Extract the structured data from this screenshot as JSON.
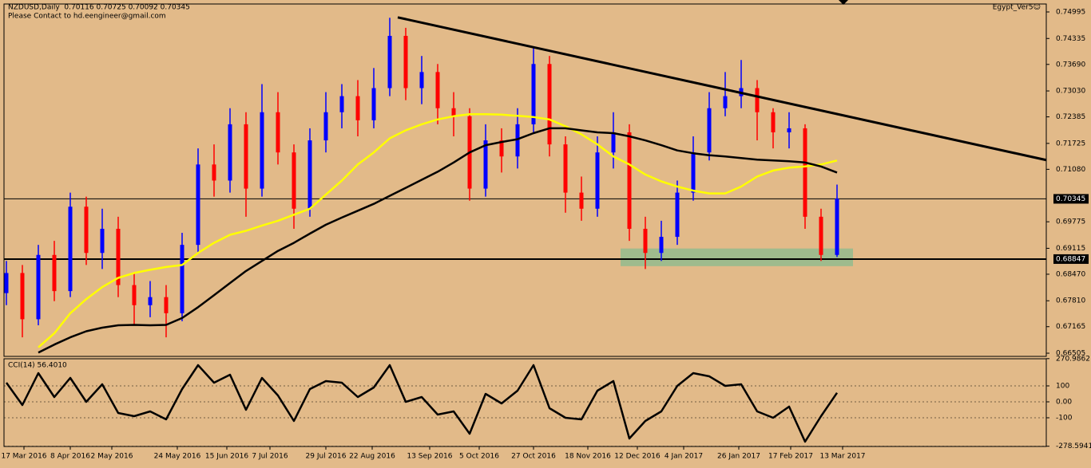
{
  "chart_data": [
    {
      "type": "candlestick",
      "title": "NZDUSD,Daily  0.70116 0.70725 0.70092 0.70345",
      "subtitle": "Please Contact to hd.eengineer@gmail.com",
      "annotation": "Egypt_Ver5☺",
      "up_color": "#0000ff",
      "down_color": "#ff0000",
      "open": [
        0.68,
        0.685,
        0.6735,
        0.6895,
        0.6805,
        0.7015,
        0.69,
        0.696,
        0.682,
        0.677,
        0.679,
        0.675,
        0.692,
        0.712,
        0.708,
        0.722,
        0.706,
        0.725,
        0.715,
        0.701,
        0.718,
        0.725,
        0.729,
        0.723,
        0.731,
        0.744,
        0.731,
        0.735,
        0.726,
        0.724,
        0.706,
        0.718,
        0.714,
        0.722,
        0.737,
        0.717,
        0.705,
        0.701,
        0.715,
        0.72,
        0.696,
        0.69,
        0.694,
        0.705,
        0.715,
        0.726,
        0.729,
        0.731,
        0.725,
        0.72,
        0.721,
        0.699,
        0.6895
      ],
      "high": [
        0.688,
        0.687,
        0.692,
        0.693,
        0.705,
        0.704,
        0.701,
        0.699,
        0.685,
        0.683,
        0.682,
        0.695,
        0.716,
        0.717,
        0.726,
        0.725,
        0.732,
        0.73,
        0.717,
        0.721,
        0.73,
        0.732,
        0.733,
        0.736,
        0.7485,
        0.746,
        0.739,
        0.737,
        0.73,
        0.726,
        0.722,
        0.721,
        0.726,
        0.741,
        0.739,
        0.719,
        0.709,
        0.719,
        0.725,
        0.722,
        0.699,
        0.698,
        0.708,
        0.719,
        0.73,
        0.735,
        0.738,
        0.733,
        0.726,
        0.725,
        0.722,
        0.701,
        0.707
      ],
      "low": [
        0.677,
        0.669,
        0.672,
        0.678,
        0.679,
        0.687,
        0.686,
        0.679,
        0.672,
        0.674,
        0.669,
        0.673,
        0.69,
        0.704,
        0.705,
        0.699,
        0.704,
        0.712,
        0.696,
        0.699,
        0.715,
        0.721,
        0.719,
        0.721,
        0.729,
        0.728,
        0.727,
        0.722,
        0.719,
        0.703,
        0.704,
        0.71,
        0.711,
        0.72,
        0.714,
        0.7,
        0.698,
        0.699,
        0.711,
        0.693,
        0.686,
        0.688,
        0.692,
        0.703,
        0.713,
        0.724,
        0.726,
        0.718,
        0.716,
        0.716,
        0.696,
        0.688,
        0.689
      ],
      "close": [
        0.685,
        0.6735,
        0.6895,
        0.6805,
        0.7015,
        0.69,
        0.696,
        0.682,
        0.677,
        0.679,
        0.675,
        0.692,
        0.712,
        0.708,
        0.722,
        0.706,
        0.725,
        0.715,
        0.701,
        0.718,
        0.725,
        0.729,
        0.723,
        0.731,
        0.744,
        0.731,
        0.735,
        0.726,
        0.724,
        0.706,
        0.718,
        0.714,
        0.722,
        0.737,
        0.717,
        0.705,
        0.701,
        0.715,
        0.72,
        0.696,
        0.69,
        0.694,
        0.705,
        0.715,
        0.726,
        0.729,
        0.731,
        0.725,
        0.72,
        0.721,
        0.699,
        0.6895,
        0.7035
      ],
      "series": [
        {
          "color": "#ffff00",
          "values": [
            null,
            null,
            0.6665,
            0.67,
            0.675,
            0.6785,
            0.6815,
            0.6838,
            0.685,
            0.6858,
            0.6865,
            0.687,
            0.69,
            0.6925,
            0.6945,
            0.6955,
            0.6968,
            0.698,
            0.6995,
            0.701,
            0.7045,
            0.708,
            0.712,
            0.715,
            0.7185,
            0.7205,
            0.722,
            0.7232,
            0.724,
            0.7245,
            0.7245,
            0.7244,
            0.7241,
            0.7238,
            0.7232,
            0.7215,
            0.7195,
            0.717,
            0.714,
            0.712,
            0.7095,
            0.7078,
            0.7065,
            0.7055,
            0.7048,
            0.7048,
            0.7065,
            0.709,
            0.7105,
            0.7112,
            0.7115,
            0.712,
            0.713
          ]
        },
        {
          "color": "#000000",
          "values": [
            null,
            null,
            0.6652,
            0.6672,
            0.669,
            0.6705,
            0.6714,
            0.672,
            0.6721,
            0.672,
            0.6721,
            0.6738,
            0.6765,
            0.6795,
            0.6825,
            0.6855,
            0.688,
            0.6905,
            0.6925,
            0.6948,
            0.697,
            0.6988,
            0.7005,
            0.7022,
            0.7042,
            0.7062,
            0.7082,
            0.7102,
            0.7125,
            0.715,
            0.7168,
            0.7176,
            0.7183,
            0.7198,
            0.721,
            0.721,
            0.7205,
            0.72,
            0.7198,
            0.719,
            0.718,
            0.7168,
            0.7155,
            0.7148,
            0.7143,
            0.714,
            0.7136,
            0.7132,
            0.713,
            0.7128,
            0.7125,
            0.7115,
            0.71
          ]
        }
      ],
      "hlines": [
        0.70345,
        0.68847
      ],
      "trendline": {
        "x": [
          24.5,
          65.1
        ],
        "y": [
          0.7486,
          0.7131
        ]
      },
      "zone": {
        "x": [
          38.45,
          53.0
        ],
        "y": [
          0.6867,
          0.6911
        ],
        "color": "#8fbc8f"
      },
      "xlim": [
        -0.15,
        65.1
      ],
      "ylim": [
        0.66426,
        0.75193
      ],
      "yticks": [
        0.74995,
        0.74335,
        {
          "value": 0.7369,
          "label": "0.73690"
        },
        {
          "value": 0.7303,
          "label": "0.73030"
        },
        0.72385,
        0.71725,
        {
          "value": 0.7108,
          "label": "0.71080"
        },
        0.69775,
        0.69115,
        {
          "value": 0.6847,
          "label": "0.68470"
        },
        {
          "value": 0.6781,
          "label": "0.67810"
        },
        0.67165,
        0.66505
      ],
      "xticks": [
        {
          "value": 1.1,
          "label": "17 Mar 2016"
        },
        {
          "value": 4.0,
          "label": "8 Apr 2016"
        },
        {
          "value": 6.6,
          "label": "2 May 2016"
        },
        {
          "value": 10.7,
          "label": "24 May 2016"
        },
        {
          "value": 13.8,
          "label": "15 Jun 2016"
        },
        {
          "value": 16.5,
          "label": "7 Jul 2016"
        },
        {
          "value": 20.0,
          "label": "29 Jul 2016"
        },
        {
          "value": 22.9,
          "label": "22 Aug 2016"
        },
        {
          "value": 26.5,
          "label": "13 Sep 2016"
        },
        {
          "value": 29.6,
          "label": "5 Oct 2016"
        },
        {
          "value": 33.0,
          "label": "27 Oct 2016"
        },
        {
          "value": 36.4,
          "label": "18 Nov 2016"
        },
        {
          "value": 39.5,
          "label": "12 Dec 2016"
        },
        {
          "value": 42.4,
          "label": "4 Jan 2017"
        },
        {
          "value": 45.85,
          "label": "26 Jan 2017"
        },
        {
          "value": 49.1,
          "label": "17 Feb 2017"
        },
        {
          "value": 52.35,
          "label": "13 Mar 2017"
        }
      ]
    },
    {
      "type": "line",
      "title": "CCI(14) 56.4010",
      "color": "#000000",
      "values": [
        120,
        -20,
        180,
        30,
        150,
        0,
        110,
        -70,
        -90,
        -60,
        -110,
        80,
        230,
        120,
        170,
        -50,
        150,
        40,
        -120,
        80,
        130,
        120,
        30,
        90,
        230,
        0,
        30,
        -80,
        -60,
        -200,
        50,
        -10,
        70,
        230,
        -40,
        -100,
        -110,
        70,
        130,
        -230,
        -120,
        -60,
        100,
        180,
        160,
        100,
        110,
        -60,
        -100,
        -30,
        -250,
        -90,
        56.401
      ],
      "ylim": [
        -280,
        270
      ],
      "yticks": [
        270.9862,
        100,
        {
          "value": 0,
          "label": "0.00"
        },
        -100,
        -278.5941
      ]
    }
  ]
}
